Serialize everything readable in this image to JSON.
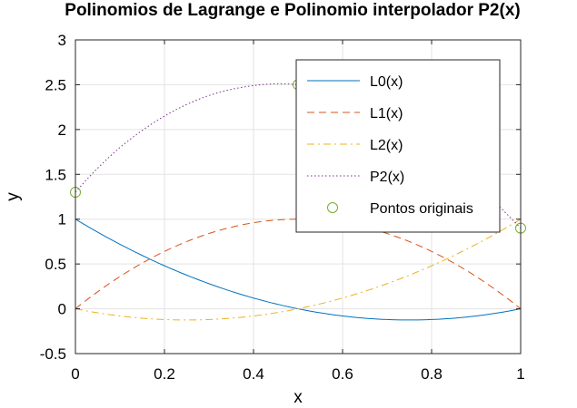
{
  "chart_data": {
    "type": "line",
    "title": "Polinomios de Lagrange e Polinomio interpolador P2(x)",
    "xlabel": "x",
    "ylabel": "y",
    "xlim": [
      0,
      1
    ],
    "ylim": [
      -0.5,
      3
    ],
    "xticks": [
      "0",
      "0.2",
      "0.4",
      "0.6",
      "0.8",
      "1"
    ],
    "yticks": [
      "-0.5",
      "0",
      "0.5",
      "1",
      "1.5",
      "2",
      "2.5",
      "3"
    ],
    "grid": true,
    "legend_position": "top-right",
    "series": [
      {
        "name": "L0(x)",
        "style": "solid",
        "color": "#0072bd",
        "x": [
          0,
          0.1,
          0.2,
          0.3,
          0.4,
          0.5,
          0.6,
          0.7,
          0.8,
          0.9,
          1.0
        ],
        "y": [
          1.0,
          0.72,
          0.48,
          0.28,
          0.12,
          0.0,
          -0.08,
          -0.12,
          -0.12,
          -0.08,
          0.0
        ]
      },
      {
        "name": "L1(x)",
        "style": "dashed",
        "color": "#d95319",
        "x": [
          0,
          0.1,
          0.2,
          0.3,
          0.4,
          0.5,
          0.6,
          0.7,
          0.8,
          0.9,
          1.0
        ],
        "y": [
          0.0,
          0.36,
          0.64,
          0.84,
          0.96,
          1.0,
          0.96,
          0.84,
          0.64,
          0.36,
          0.0
        ]
      },
      {
        "name": "L2(x)",
        "style": "dashdot",
        "color": "#edb120",
        "x": [
          0,
          0.1,
          0.2,
          0.3,
          0.4,
          0.5,
          0.6,
          0.7,
          0.8,
          0.9,
          1.0
        ],
        "y": [
          0.0,
          -0.08,
          -0.12,
          -0.12,
          -0.08,
          0.0,
          0.12,
          0.28,
          0.48,
          0.72,
          1.0
        ]
      },
      {
        "name": "P2(x)",
        "style": "dotted",
        "color": "#7e2f8e",
        "x": [
          0,
          0.1,
          0.2,
          0.3,
          0.4,
          0.5,
          0.6,
          0.7,
          0.8,
          0.9,
          1.0
        ],
        "y": [
          1.3,
          1.8,
          2.15,
          2.38,
          2.49,
          2.5,
          2.39,
          2.17,
          1.83,
          1.39,
          0.9
        ]
      },
      {
        "name": "Pontos originais",
        "style": "markers",
        "color": "#77ac30",
        "x": [
          0,
          0.5,
          1.0
        ],
        "y": [
          1.3,
          2.5,
          0.9
        ]
      }
    ]
  }
}
